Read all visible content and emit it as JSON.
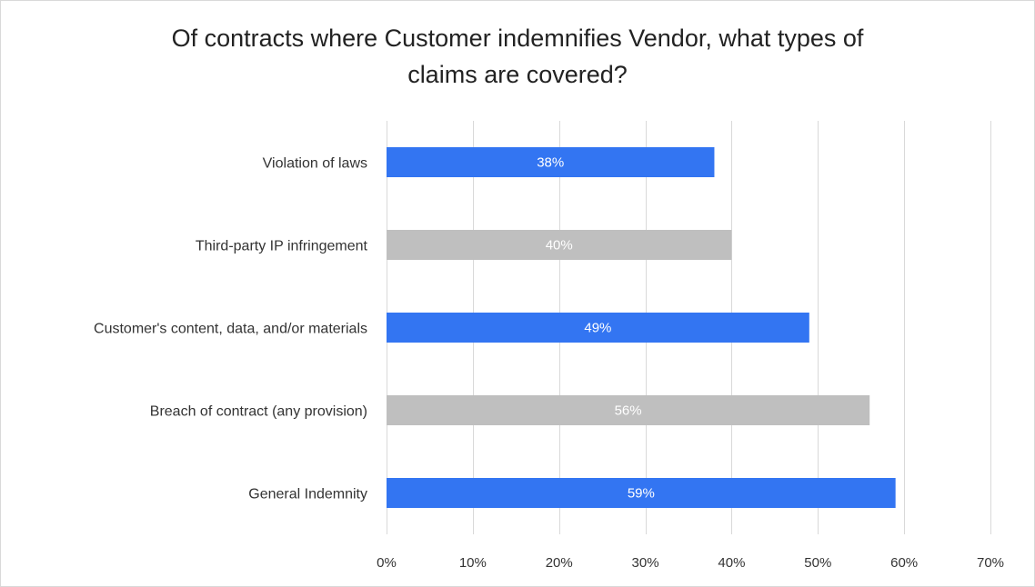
{
  "chart_data": {
    "type": "bar",
    "orientation": "horizontal",
    "title_lines": [
      "Of contracts where Customer indemnifies Vendor, what types of",
      "claims are covered?"
    ],
    "categories": [
      "Violation of laws",
      "Third-party IP infringement",
      "Customer's content, data, and/or materials",
      "Breach of contract (any provision)",
      "General Indemnity"
    ],
    "values": [
      38,
      40,
      49,
      56,
      59
    ],
    "value_labels": [
      "38%",
      "40%",
      "49%",
      "56%",
      "59%"
    ],
    "bar_colors": [
      "#3375f2",
      "#bfbfbf",
      "#3375f2",
      "#bfbfbf",
      "#3375f2"
    ],
    "xlim": [
      0,
      70
    ],
    "x_ticks": [
      0,
      10,
      20,
      30,
      40,
      50,
      60,
      70
    ],
    "x_tick_labels": [
      "0%",
      "10%",
      "20%",
      "30%",
      "40%",
      "50%",
      "60%",
      "70%"
    ],
    "grid": true,
    "gridline_color": "#d9d9d9",
    "legend": "none"
  }
}
